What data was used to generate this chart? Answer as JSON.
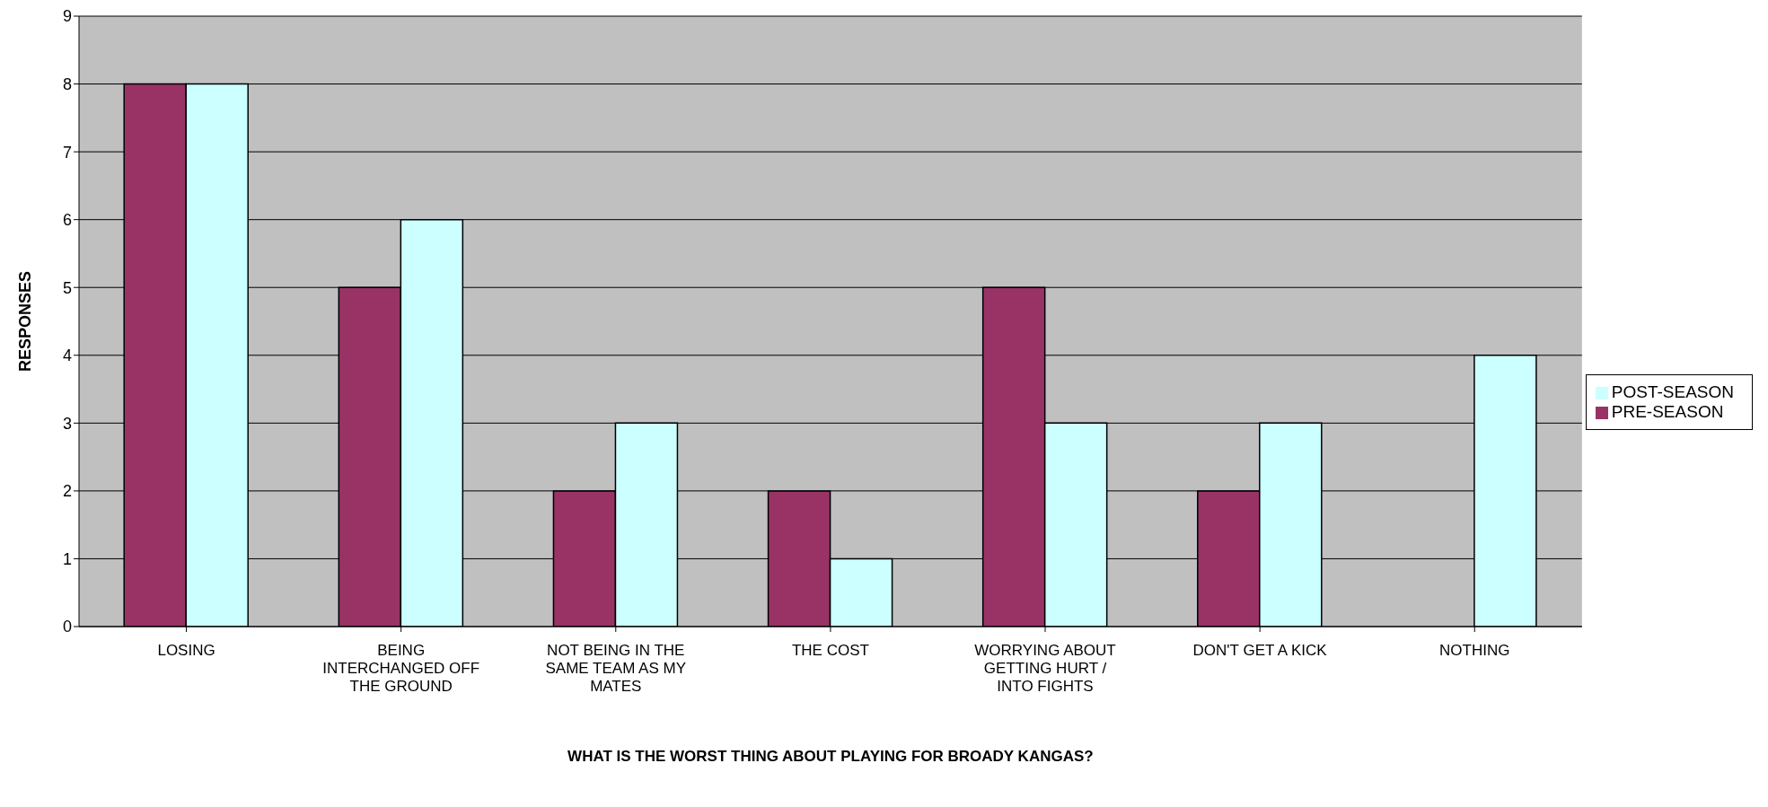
{
  "chart_data": {
    "type": "bar",
    "xlabel": "WHAT IS THE WORST THING ABOUT PLAYING FOR BROADY KANGAS?",
    "ylabel": "RESPONSES",
    "categories": [
      "LOSING",
      "BEING INTERCHANGED OFF THE GROUND",
      "NOT BEING IN THE SAME TEAM AS MY MATES",
      "THE COST",
      "WORRYING ABOUT GETTING HURT / INTO FIGHTS",
      "DON'T GET A KICK",
      "NOTHING"
    ],
    "series": [
      {
        "name": "PRE-SEASON",
        "color": "#993366",
        "values": [
          8,
          5,
          2,
          2,
          5,
          2,
          0
        ]
      },
      {
        "name": "POST-SEASON",
        "color": "#ccffff",
        "values": [
          8,
          6,
          3,
          1,
          3,
          3,
          4
        ]
      }
    ],
    "ylim": [
      0,
      9
    ],
    "yticks": [
      0,
      1,
      2,
      3,
      4,
      5,
      6,
      7,
      8,
      9
    ],
    "grid": "y",
    "legend": "right"
  }
}
